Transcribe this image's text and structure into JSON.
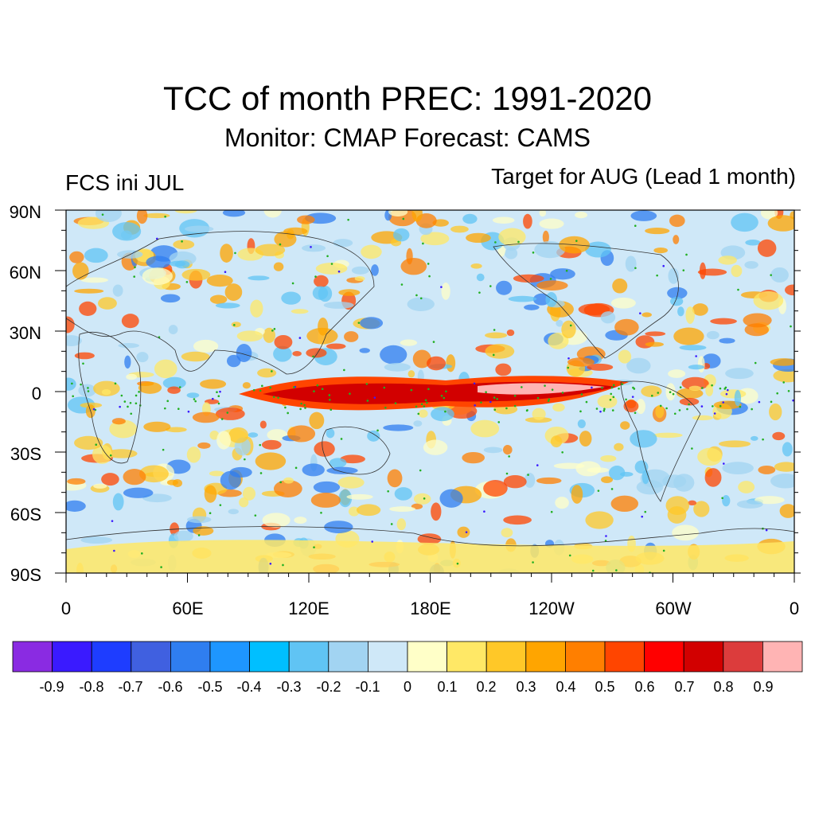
{
  "title": "TCC of month PREC: 1991-2020",
  "subtitle": "Monitor: CMAP   Forecast: CAMS",
  "left_label": "FCS ini JUL",
  "right_label": "Target for AUG (Lead 1 month)",
  "y_axis": {
    "ticks": [
      "90N",
      "60N",
      "30N",
      "0",
      "30S",
      "60S",
      "90S"
    ]
  },
  "x_axis": {
    "ticks": [
      "0",
      "60E",
      "120E",
      "180E",
      "120W",
      "60W",
      "0"
    ]
  },
  "colorbar": {
    "colors": [
      "#8a2be2",
      "#3a1aff",
      "#1e3dff",
      "#4060e0",
      "#2f7ef0",
      "#1e96ff",
      "#00bfff",
      "#60c4f4",
      "#a2d4f2",
      "#cfe8f8",
      "#ffffc8",
      "#ffe866",
      "#ffc828",
      "#ffa500",
      "#ff7f00",
      "#ff4500",
      "#ff0000",
      "#d20000",
      "#dc3c3c",
      "#ffb4b4"
    ],
    "labels": [
      "-0.9",
      "-0.8",
      "-0.7",
      "-0.6",
      "-0.5",
      "-0.4",
      "-0.3",
      "-0.2",
      "-0.1",
      "0",
      "0.1",
      "0.2",
      "0.3",
      "0.4",
      "0.5",
      "0.6",
      "0.7",
      "0.8",
      "0.9"
    ]
  }
}
